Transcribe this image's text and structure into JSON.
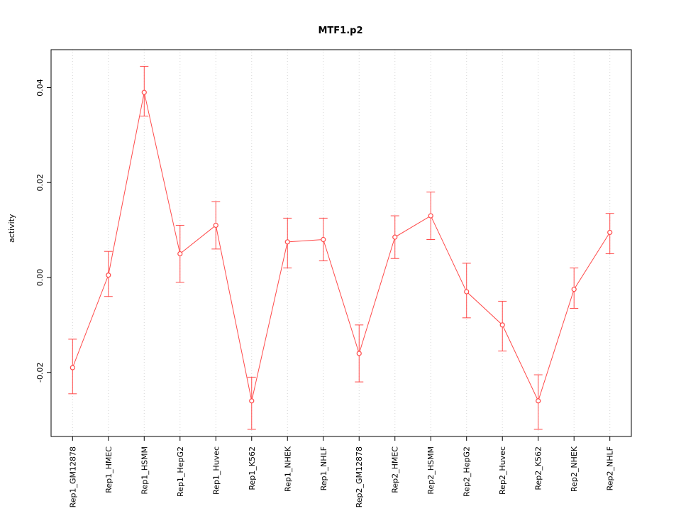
{
  "chart_data": {
    "type": "line",
    "title": "MTF1.p2",
    "xlabel": "",
    "ylabel": "activity",
    "categories": [
      "Rep1_GM12878",
      "Rep1_HMEC",
      "Rep1_HSMM",
      "Rep1_HepG2",
      "Rep1_Huvec",
      "Rep1_K562",
      "Rep1_NHEK",
      "Rep1_NHLF",
      "Rep2_GM12878",
      "Rep2_HMEC",
      "Rep2_HSMM",
      "Rep2_HepG2",
      "Rep2_Huvec",
      "Rep2_K562",
      "Rep2_NHEK",
      "Rep2_NHLF"
    ],
    "values": [
      -0.019,
      0.0005,
      0.039,
      0.005,
      0.011,
      -0.026,
      0.0075,
      0.008,
      -0.016,
      0.0085,
      0.013,
      -0.003,
      -0.01,
      -0.026,
      -0.0025,
      0.0095
    ],
    "error_low": [
      -0.0245,
      -0.004,
      0.034,
      -0.001,
      0.006,
      -0.032,
      0.002,
      0.0035,
      -0.022,
      0.004,
      0.008,
      -0.0085,
      -0.0155,
      -0.032,
      -0.0065,
      0.005
    ],
    "error_high": [
      -0.013,
      0.0055,
      0.0445,
      0.011,
      0.016,
      -0.021,
      0.0125,
      0.0125,
      -0.01,
      0.013,
      0.018,
      0.003,
      -0.005,
      -0.0205,
      0.002,
      0.0135
    ],
    "yticks": [
      {
        "v": -0.02,
        "label": "-0.02"
      },
      {
        "v": 0.0,
        "label": "0.00"
      },
      {
        "v": 0.02,
        "label": "0.02"
      },
      {
        "v": 0.04,
        "label": "0.04"
      }
    ],
    "ylim": [
      -0.0335,
      0.048
    ],
    "grid": "vertical-dotted",
    "legend_position": "none",
    "colors": {
      "series": "#ff4a4a",
      "grid": "#d4d4d4",
      "axis": "#000000",
      "point_fill": "#ffffff"
    }
  }
}
